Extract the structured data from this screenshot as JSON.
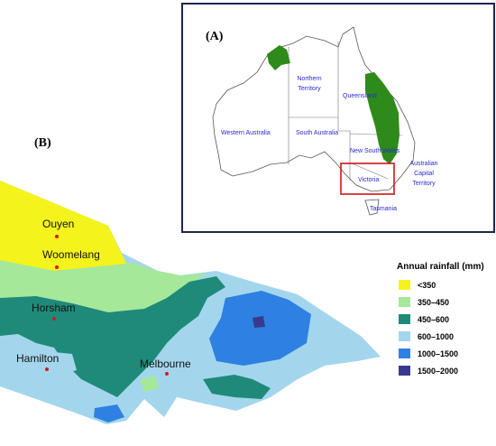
{
  "panel_a": {
    "label": "(A)",
    "regions": [
      {
        "lines": [
          "Northern",
          "Territory"
        ]
      },
      {
        "lines": [
          "Queensland"
        ]
      },
      {
        "lines": [
          "Western Australia"
        ]
      },
      {
        "lines": [
          "South Australia"
        ]
      },
      {
        "lines": [
          "New South Wales"
        ]
      },
      {
        "lines": [
          "Victoria"
        ]
      },
      {
        "lines": [
          "Australian",
          "Capital",
          "Territory"
        ]
      },
      {
        "lines": [
          "Tasmania"
        ]
      }
    ]
  },
  "panel_b": {
    "label": "(B)",
    "cities": [
      "Ouyen",
      "Woomelang",
      "Horsham",
      "Hamilton",
      "Melbourne"
    ],
    "legend": {
      "title": "Annual rainfall (mm)",
      "items": [
        {
          "label": "<350",
          "color": "#f4f41c"
        },
        {
          "label": "350–450",
          "color": "#a6e89a"
        },
        {
          "label": "450–600",
          "color": "#1f8a79"
        },
        {
          "label": "600–1000",
          "color": "#a3d6ec"
        },
        {
          "label": "1000–1500",
          "color": "#2e80e2"
        },
        {
          "label": "1500–2000",
          "color": "#3a3a8c"
        }
      ]
    }
  }
}
